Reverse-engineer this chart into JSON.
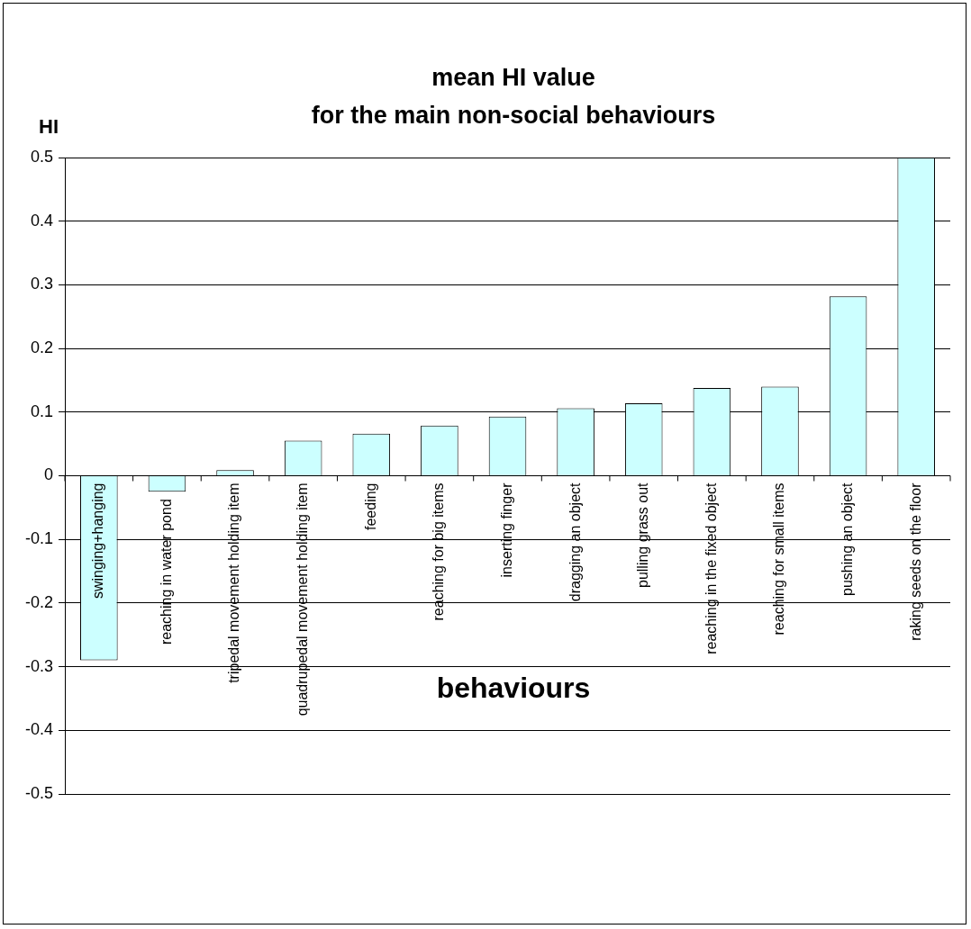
{
  "chart_data": {
    "type": "bar",
    "title": "mean HI value\nfor the main non-social behaviours",
    "ylabel": "HI",
    "xlabel": "behaviours",
    "categories": [
      "swinging+hanging",
      "reaching in water pond",
      "tripedal movement holding item",
      "quadrupedal movement holding item",
      "feeding",
      "reaching for big items",
      "inserting finger",
      "dragging an object",
      "pulling grass out",
      "reaching in the fixed object",
      "reaching for small items",
      "pushing an object",
      "raking seeds on the floor"
    ],
    "values": [
      -0.29,
      -0.025,
      0.009,
      0.055,
      0.066,
      0.079,
      0.093,
      0.106,
      0.114,
      0.138,
      0.14,
      0.282,
      0.5
    ],
    "color": "#ccffff",
    "ylim": [
      -0.5,
      0.5
    ],
    "yticks": [
      -0.5,
      -0.4,
      -0.3,
      -0.2,
      -0.1,
      0,
      0.1,
      0.2,
      0.3,
      0.4,
      0.5
    ],
    "grid": "y",
    "legend": false
  }
}
